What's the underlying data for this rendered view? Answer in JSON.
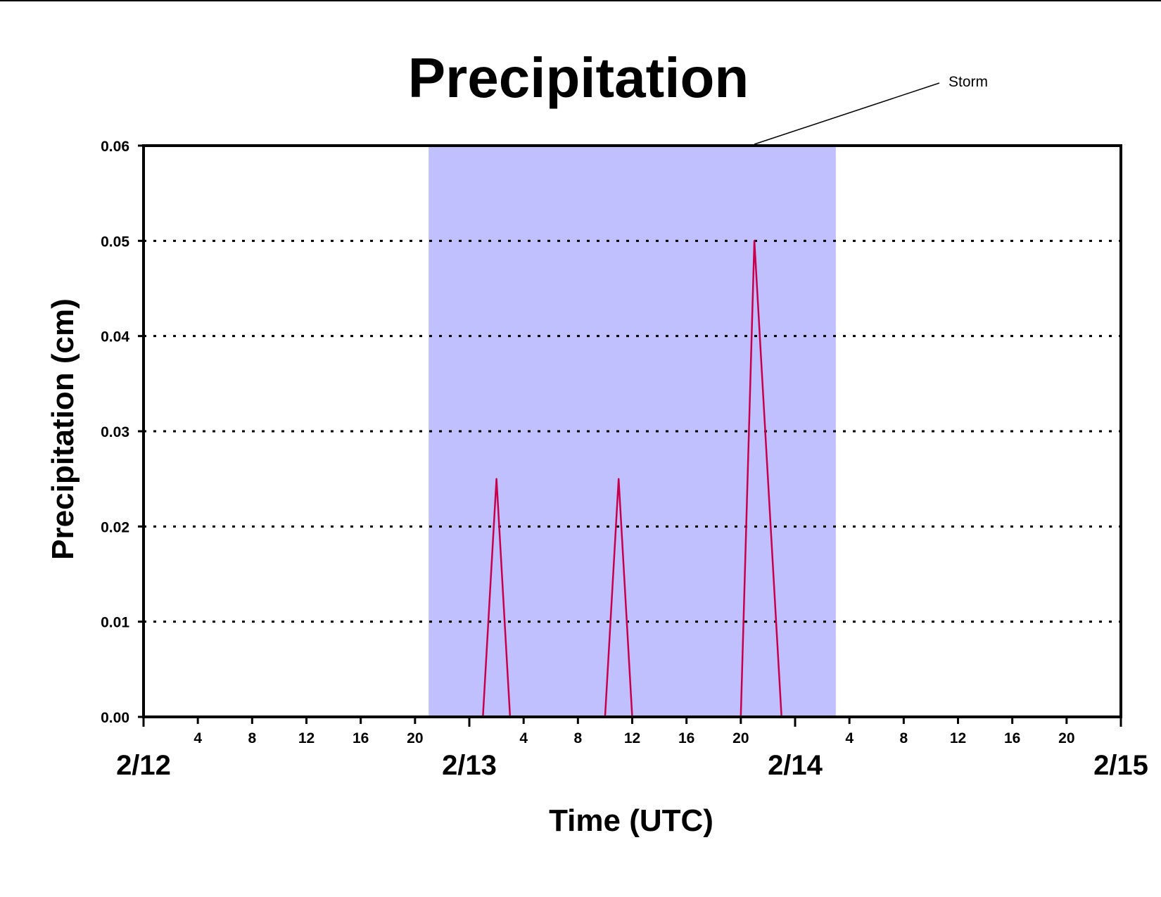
{
  "chart_data": {
    "type": "line",
    "title": "Precipitation",
    "xlabel": "Time (UTC)",
    "ylabel": "Precipitation (cm)",
    "ylim": [
      0,
      0.06
    ],
    "y_ticks": [
      "0.00",
      "0.01",
      "0.02",
      "0.03",
      "0.04",
      "0.05",
      "0.06"
    ],
    "x_range_hours": [
      0,
      72
    ],
    "x_hour_tick_labels": [
      "4",
      "8",
      "12",
      "16",
      "20",
      "4",
      "8",
      "12",
      "16",
      "20",
      "4",
      "8",
      "12",
      "16",
      "20"
    ],
    "x_date_labels": [
      "2/12",
      "2/13",
      "2/14",
      "2/15"
    ],
    "grid": "horizontal dotted",
    "shaded_region": {
      "label": "Storm",
      "start_hour": 21,
      "end_hour": 51,
      "color": "#c0c0ff"
    },
    "series": [
      {
        "color": "#c8004b",
        "points": [
          [
            0,
            0
          ],
          [
            25,
            0
          ],
          [
            26,
            0.025
          ],
          [
            27,
            0
          ],
          [
            34,
            0
          ],
          [
            35,
            0.025
          ],
          [
            36,
            0
          ],
          [
            44,
            0
          ],
          [
            45,
            0.05
          ],
          [
            46,
            0.025
          ],
          [
            47,
            0
          ],
          [
            72,
            0
          ]
        ]
      }
    ]
  }
}
